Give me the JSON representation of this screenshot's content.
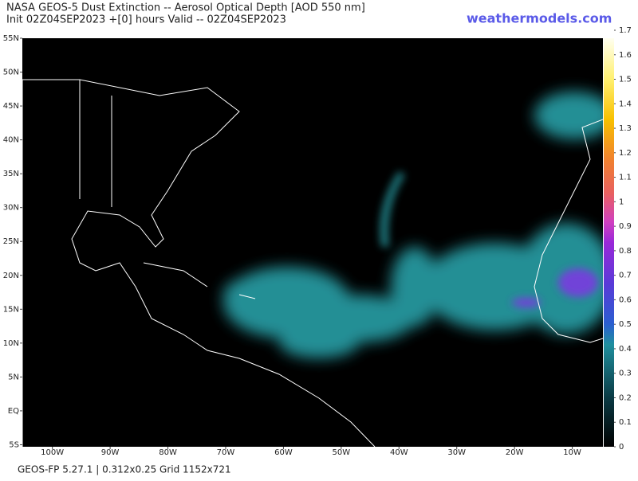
{
  "header": {
    "title": "NASA GEOS-5 Dust Extinction -- Aerosol Optical Depth [AOD 550 nm]",
    "subtitle": "Init 02Z04SEP2023 +[0] hours Valid -- 02Z04SEP2023",
    "site": "weathermodels.com"
  },
  "map": {
    "xlim": [
      -105.2,
      -4.7
    ],
    "ylim": [
      -5.3,
      55
    ],
    "xticks": [
      {
        "value": -100,
        "label": "100W"
      },
      {
        "value": -90,
        "label": "90W"
      },
      {
        "value": -80,
        "label": "80W"
      },
      {
        "value": -70,
        "label": "70W"
      },
      {
        "value": -60,
        "label": "60W"
      },
      {
        "value": -50,
        "label": "50W"
      },
      {
        "value": -40,
        "label": "40W"
      },
      {
        "value": -30,
        "label": "30W"
      },
      {
        "value": -20,
        "label": "20W"
      },
      {
        "value": -10,
        "label": "10W"
      }
    ],
    "yticks": [
      {
        "value": 55,
        "label": "55N"
      },
      {
        "value": 50,
        "label": "50N"
      },
      {
        "value": 45,
        "label": "45N"
      },
      {
        "value": 40,
        "label": "40N"
      },
      {
        "value": 35,
        "label": "35N"
      },
      {
        "value": 30,
        "label": "30N"
      },
      {
        "value": 25,
        "label": "25N"
      },
      {
        "value": 20,
        "label": "20N"
      },
      {
        "value": 15,
        "label": "15N"
      },
      {
        "value": 10,
        "label": "10N"
      },
      {
        "value": 5,
        "label": "5N"
      },
      {
        "value": 0,
        "label": "EQ"
      },
      {
        "value": -5,
        "label": "5S"
      }
    ]
  },
  "colorbar": {
    "clim": [
      0,
      1.7
    ],
    "ticks": [
      0,
      0.1,
      0.2,
      0.3,
      0.4,
      0.5,
      0.6,
      0.7,
      0.8,
      0.9,
      1,
      1.1,
      1.2,
      1.3,
      1.4,
      1.5,
      1.6,
      1.7
    ]
  },
  "footer": "GEOS-FP 5.27.1 | 0.312x0.25 Grid 1152x721"
}
